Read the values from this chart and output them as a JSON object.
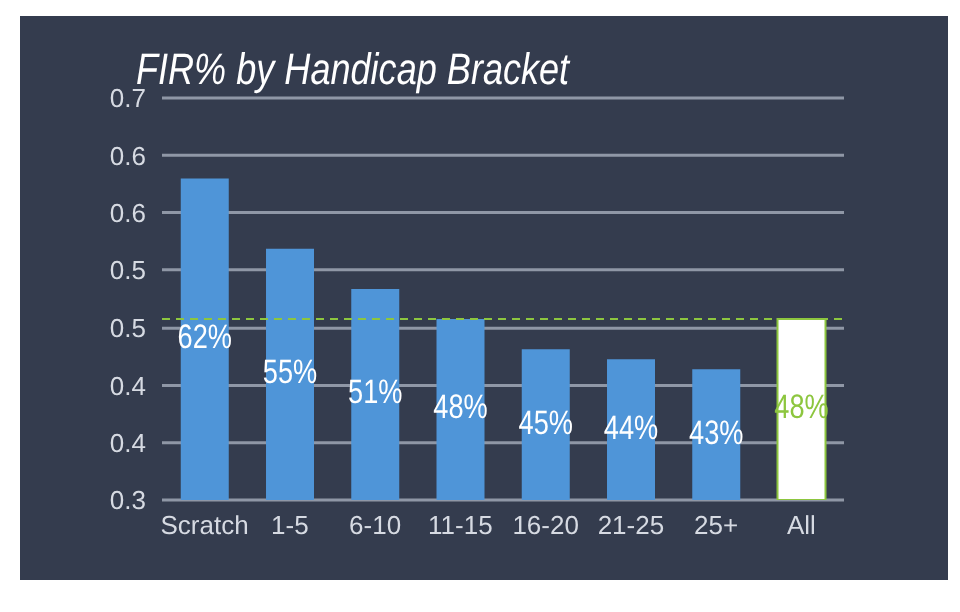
{
  "chart_data": {
    "type": "bar",
    "title": "FIR% by Handicap Bracket",
    "categories": [
      "Scratch",
      "1-5",
      "6-10",
      "11-15",
      "16-20",
      "21-25",
      "25+",
      "All"
    ],
    "values": [
      0.62,
      0.55,
      0.51,
      0.48,
      0.45,
      0.44,
      0.43,
      0.48
    ],
    "colors": [
      "#4f95d8",
      "#4f95d8",
      "#4f95d8",
      "#4f95d8",
      "#4f95d8",
      "#4f95d8",
      "#4f95d8",
      "#ffffff"
    ],
    "value_labels": [
      "62%",
      "55%",
      "51%",
      "48%",
      "45%",
      "44%",
      "43%",
      "48%"
    ],
    "ylim": [
      0.3,
      0.7
    ],
    "yticks": [
      {
        "value": 0.3,
        "label": "0.3"
      },
      {
        "value": 0.357,
        "label": "0.4"
      },
      {
        "value": 0.414,
        "label": "0.4"
      },
      {
        "value": 0.471,
        "label": "0.5"
      },
      {
        "value": 0.529,
        "label": "0.5"
      },
      {
        "value": 0.586,
        "label": "0.6"
      },
      {
        "value": 0.643,
        "label": "0.6"
      },
      {
        "value": 0.7,
        "label": "0.7"
      }
    ],
    "ref_lines": [
      {
        "axis": "y",
        "value": 0.48,
        "color": "#8dc63f",
        "line_style": "dashed"
      }
    ],
    "grid": "y"
  }
}
